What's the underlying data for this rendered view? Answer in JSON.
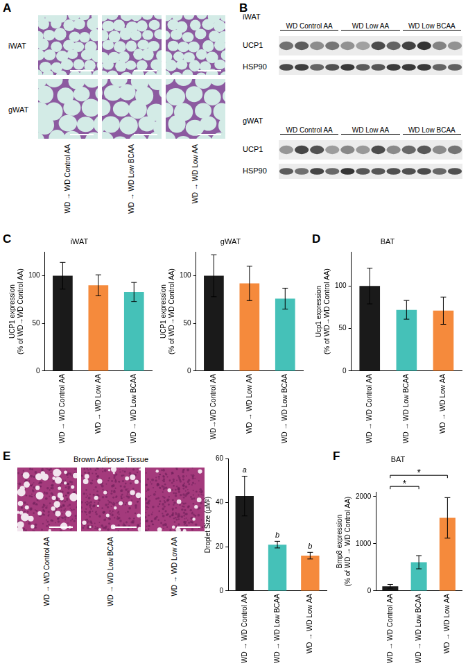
{
  "figure": {
    "A": {
      "panel": "A",
      "rows": [
        "iWAT",
        "gWAT"
      ],
      "columns": [
        "WD → WD Control AA",
        "WD → WD Low BCAA",
        "WD → WD Low AA"
      ]
    },
    "B": {
      "panel": "B",
      "blots": [
        {
          "tissue": "iWAT",
          "groups": [
            "WD Control AA",
            "WD Low AA",
            "WD Low BCAA"
          ],
          "bands": [
            "UCP1",
            "HSP90"
          ]
        },
        {
          "tissue": "gWAT",
          "groups": [
            "WD Control AA",
            "WD Low AA",
            "WD Low BCAA"
          ],
          "bands": [
            "UCP1",
            "HSP90"
          ]
        }
      ]
    },
    "E": {
      "panel": "E",
      "title": "Brown Adipose Tissue",
      "columns": [
        "WD → WD Control AA",
        "WD → WD Low BCAA",
        "WD → WD Low AA"
      ]
    }
  },
  "chart_data": [
    {
      "panel": "C",
      "type": "bar",
      "title": "iWAT",
      "y_label": [
        "UCP1 expression",
        "(% of WD→WD Control AA)"
      ],
      "categories": [
        "WD → WD Control AA",
        "WD → WD Low AA",
        "WD → WD Low BCAA"
      ],
      "values": [
        100,
        90,
        83
      ],
      "errors": [
        14,
        11,
        10
      ],
      "colors": [
        "#1a1a1a",
        "#f58a3c",
        "#45c1b8"
      ],
      "ylim": [
        0,
        125
      ],
      "yticks": [
        0,
        50,
        100
      ],
      "grid": false
    },
    {
      "type": "bar",
      "title": "gWAT",
      "y_label": [
        "UCP1 expression",
        "(% of WD→WD Control AA)"
      ],
      "categories": [
        "WD→WD Control AA",
        "WD → WD Low AA",
        "WD → WD Low BCAA"
      ],
      "values": [
        100,
        92,
        76
      ],
      "errors": [
        22,
        18,
        11
      ],
      "colors": [
        "#1a1a1a",
        "#f58a3c",
        "#45c1b8"
      ],
      "ylim": [
        0,
        125
      ],
      "yticks": [
        0,
        50,
        100
      ],
      "grid": false
    },
    {
      "panel": "D",
      "type": "bar",
      "title": "BAT",
      "y_label": [
        "Ucp1 expression",
        "(% of WD→WD Control AA)"
      ],
      "categories": [
        "WD → WD Control AA",
        "WD → WD Low BCAA",
        "WD → WD Low AA"
      ],
      "values": [
        100,
        72,
        71
      ],
      "errors": [
        21,
        11,
        16
      ],
      "colors": [
        "#1a1a1a",
        "#45c1b8",
        "#f58a3c"
      ],
      "ylim": [
        0,
        140
      ],
      "yticks": [
        0,
        50,
        100
      ],
      "grid": false
    },
    {
      "type": "bar",
      "y_label": [
        "Droplet Size (μM²)"
      ],
      "categories": [
        "WD → WD Control AA",
        "WD → WD Low BCAA",
        "WD → WD Low AA"
      ],
      "values": [
        43,
        21,
        16
      ],
      "errors": [
        9,
        1.5,
        1.5
      ],
      "letters": [
        "a",
        "b",
        "b"
      ],
      "colors": [
        "#1a1a1a",
        "#45c1b8",
        "#f58a3c"
      ],
      "ylim": [
        0,
        60
      ],
      "yticks": [
        0,
        20,
        40,
        60
      ],
      "grid": false
    },
    {
      "panel": "F",
      "type": "bar",
      "title": "BAT",
      "y_label": [
        "Bmp8 expression",
        "(% of WD → WD Control AA)"
      ],
      "categories": [
        "WD → WD Control AA",
        "WD → WD Low BCAA",
        "WD → WD Low AA"
      ],
      "values": [
        100,
        610,
        1550
      ],
      "errors": [
        40,
        140,
        430
      ],
      "colors": [
        "#1a1a1a",
        "#45c1b8",
        "#f58a3c"
      ],
      "significance": [
        {
          "from": 0,
          "to": 1,
          "label": "*"
        },
        {
          "from": 0,
          "to": 2,
          "label": "*"
        }
      ],
      "ylim": [
        0,
        2100
      ],
      "yticks": [
        0,
        1000,
        2000
      ],
      "grid": false
    }
  ]
}
